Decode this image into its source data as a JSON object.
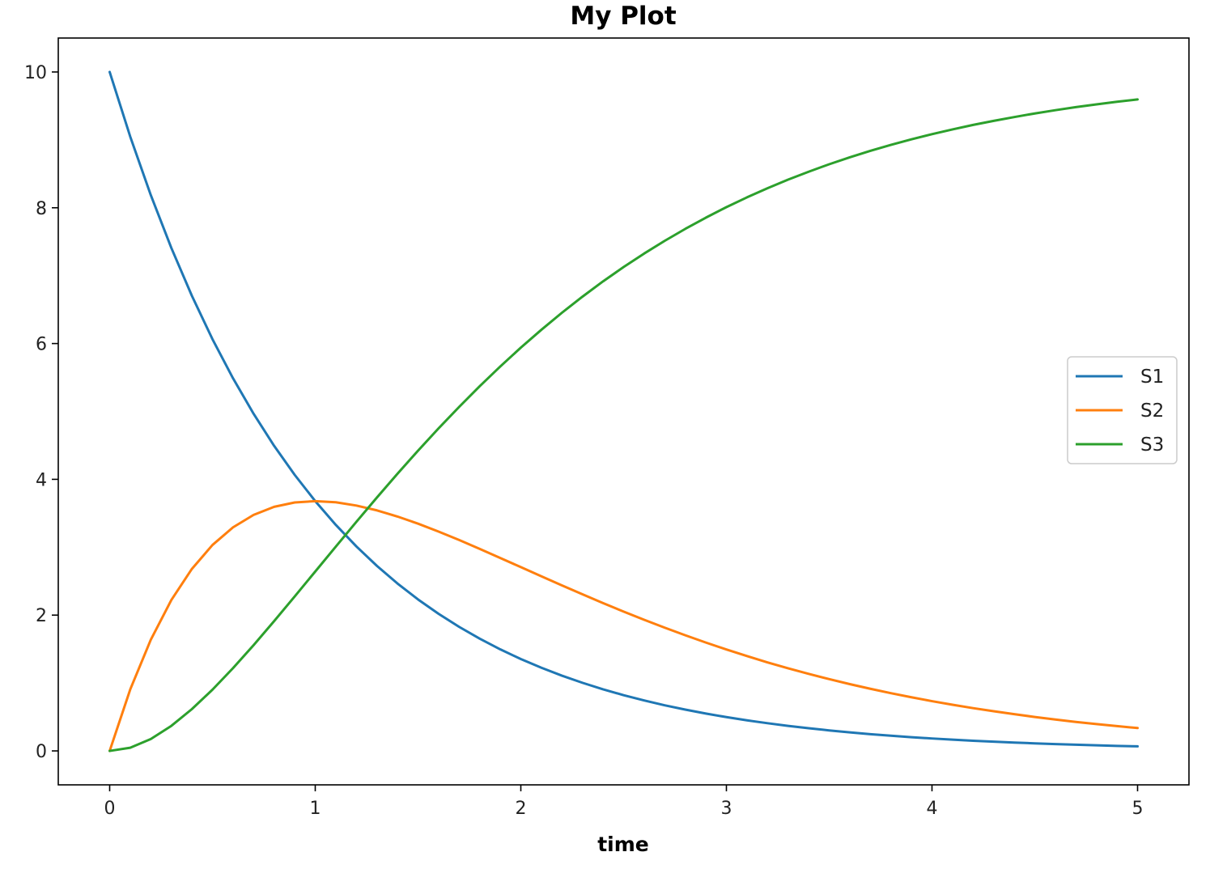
{
  "chart_data": {
    "type": "line",
    "title": "My Plot",
    "xlabel": "time",
    "ylabel": "",
    "xlim": [
      -0.25,
      5.25
    ],
    "ylim": [
      -0.5,
      10.5
    ],
    "xticks": [
      0,
      1,
      2,
      3,
      4,
      5
    ],
    "yticks": [
      0,
      2,
      4,
      6,
      8,
      10
    ],
    "grid": false,
    "legend_position": "center-right",
    "x": [
      0,
      0.1,
      0.2,
      0.3,
      0.4,
      0.5,
      0.6,
      0.7,
      0.8,
      0.9,
      1.0,
      1.1,
      1.2,
      1.3,
      1.4,
      1.5,
      1.6,
      1.7,
      1.8,
      1.9,
      2.0,
      2.1,
      2.2,
      2.3,
      2.4,
      2.5,
      2.6,
      2.7,
      2.8,
      2.9,
      3.0,
      3.1,
      3.2,
      3.3,
      3.4,
      3.5,
      3.6,
      3.7,
      3.8,
      3.9,
      4.0,
      4.1,
      4.2,
      4.3,
      4.4,
      4.5,
      4.6,
      4.7,
      4.8,
      4.9,
      5.0
    ],
    "series": [
      {
        "name": "S1",
        "color": "#1f77b4",
        "values": [
          10.0,
          9.048,
          8.187,
          7.408,
          6.703,
          6.065,
          5.488,
          4.966,
          4.493,
          4.066,
          3.679,
          3.329,
          3.012,
          2.725,
          2.466,
          2.231,
          2.019,
          1.827,
          1.653,
          1.496,
          1.353,
          1.225,
          1.108,
          1.003,
          0.907,
          0.821,
          0.743,
          0.672,
          0.608,
          0.55,
          0.498,
          0.45,
          0.408,
          0.369,
          0.334,
          0.302,
          0.273,
          0.247,
          0.224,
          0.202,
          0.183,
          0.166,
          0.15,
          0.136,
          0.123,
          0.111,
          0.1,
          0.091,
          0.082,
          0.074,
          0.067
        ]
      },
      {
        "name": "S2",
        "color": "#ff7f0e",
        "values": [
          0.0,
          0.905,
          1.637,
          2.222,
          2.681,
          3.033,
          3.293,
          3.476,
          3.595,
          3.659,
          3.679,
          3.662,
          3.614,
          3.543,
          3.452,
          3.347,
          3.23,
          3.106,
          2.975,
          2.842,
          2.707,
          2.572,
          2.438,
          2.306,
          2.177,
          2.052,
          1.931,
          1.815,
          1.703,
          1.596,
          1.494,
          1.397,
          1.304,
          1.217,
          1.135,
          1.057,
          0.984,
          0.915,
          0.85,
          0.79,
          0.733,
          0.68,
          0.63,
          0.584,
          0.541,
          0.5,
          0.462,
          0.427,
          0.395,
          0.365,
          0.337
        ]
      },
      {
        "name": "S3",
        "color": "#2ca02c",
        "values": [
          0.0,
          0.047,
          0.175,
          0.369,
          0.616,
          0.902,
          1.219,
          1.558,
          1.912,
          2.275,
          2.642,
          3.009,
          3.374,
          3.732,
          4.082,
          4.422,
          4.751,
          5.067,
          5.372,
          5.662,
          5.94,
          6.203,
          6.454,
          6.691,
          6.916,
          7.127,
          7.326,
          7.513,
          7.689,
          7.854,
          8.009,
          8.153,
          8.288,
          8.414,
          8.531,
          8.641,
          8.743,
          8.838,
          8.926,
          9.008,
          9.084,
          9.154,
          9.22,
          9.28,
          9.336,
          9.389,
          9.437,
          9.482,
          9.523,
          9.561,
          9.596
        ]
      }
    ]
  }
}
